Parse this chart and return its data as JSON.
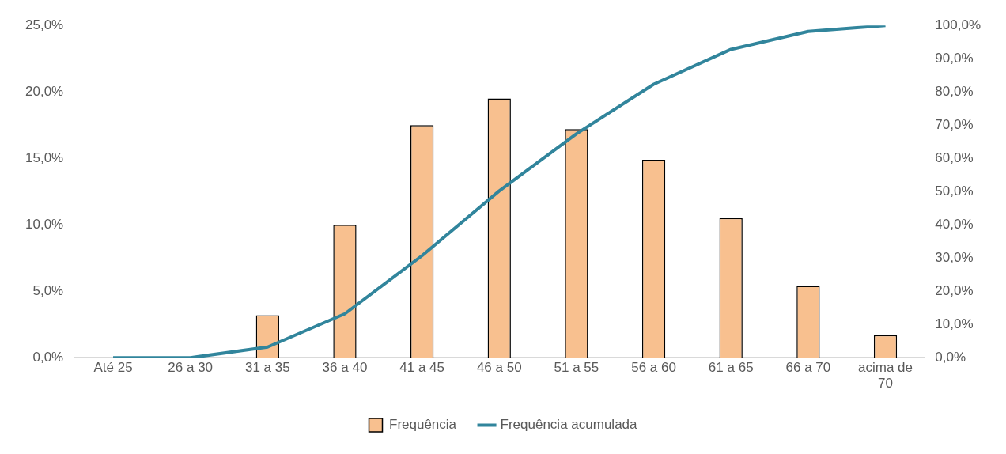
{
  "chart_data": {
    "type": "bar",
    "categories": [
      "Até 25",
      "26 a 30",
      "31 a 35",
      "36 a 40",
      "41 a 45",
      "46 a 50",
      "51 a 55",
      "56 a 60",
      "61 a 65",
      "66 a 70",
      "acima de 70"
    ],
    "series": [
      {
        "name": "Frequência",
        "color": "#f8c08f",
        "values": [
          0,
          0,
          3.2,
          10.0,
          17.5,
          19.5,
          17.2,
          14.9,
          10.5,
          5.4,
          1.7
        ]
      },
      {
        "name": "Frequência acumulada",
        "type": "line",
        "axis": "y2",
        "color": "#31859c",
        "values": [
          0,
          0,
          3.2,
          13.2,
          30.7,
          50.2,
          67.4,
          82.3,
          92.8,
          98.2,
          100
        ]
      }
    ],
    "ylim": [
      0,
      25
    ],
    "yticks": [
      {
        "value": 0,
        "label": "0,0%"
      },
      {
        "value": 5,
        "label": "5,0%"
      },
      {
        "value": 10,
        "label": "10,0%"
      },
      {
        "value": 15,
        "label": "15,0%"
      },
      {
        "value": 20,
        "label": "20,0%"
      },
      {
        "value": 25,
        "label": "25,0%"
      }
    ],
    "y2lim": [
      0,
      100
    ],
    "y2ticks": [
      {
        "value": 0,
        "label": "0,0%"
      },
      {
        "value": 10,
        "label": "10,0%"
      },
      {
        "value": 20,
        "label": "20,0%"
      },
      {
        "value": 30,
        "label": "30,0%"
      },
      {
        "value": 40,
        "label": "40,0%"
      },
      {
        "value": 50,
        "label": "50,0%"
      },
      {
        "value": 60,
        "label": "60,0%"
      },
      {
        "value": 70,
        "label": "70,0%"
      },
      {
        "value": 80,
        "label": "80,0%"
      },
      {
        "value": 90,
        "label": "90,0%"
      },
      {
        "value": 100,
        "label": "100,0%"
      }
    ],
    "grid": false,
    "legend": "bottom",
    "marker": "none",
    "line_style": "solid"
  }
}
